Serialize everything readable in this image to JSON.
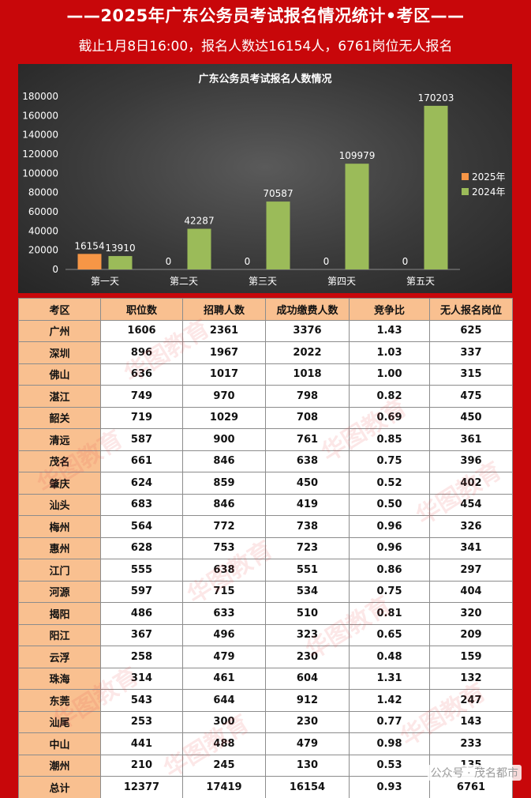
{
  "header": {
    "title": "——2025年广东公务员考试报名情况统计•考区——",
    "subtitle": "截止1月8日16:00，报名人数达16154人，6761岗位无人报名"
  },
  "chart_data": {
    "type": "bar",
    "title": "广东公务员考试报名人数情况",
    "categories": [
      "第一天",
      "第二天",
      "第三天",
      "第四天",
      "第五天"
    ],
    "series": [
      {
        "name": "2025年",
        "color": "#f79646",
        "values": [
          16154,
          0,
          0,
          0,
          0
        ]
      },
      {
        "name": "2024年",
        "color": "#9bbb59",
        "values": [
          13910,
          42287,
          70587,
          109979,
          170203
        ]
      }
    ],
    "ylim": [
      0,
      180000
    ],
    "yticks": [
      0,
      20000,
      40000,
      60000,
      80000,
      100000,
      120000,
      140000,
      160000,
      180000
    ],
    "legend": "right",
    "grid": false
  },
  "table": {
    "headers": [
      "考区",
      "职位数",
      "招聘人数",
      "成功缴费人数",
      "竞争比",
      "无人报名岗位"
    ],
    "rows": [
      [
        "广州",
        "1606",
        "2361",
        "3376",
        "1.43",
        "625"
      ],
      [
        "深圳",
        "896",
        "1967",
        "2022",
        "1.03",
        "337"
      ],
      [
        "佛山",
        "636",
        "1017",
        "1018",
        "1.00",
        "315"
      ],
      [
        "湛江",
        "749",
        "970",
        "798",
        "0.82",
        "475"
      ],
      [
        "韶关",
        "719",
        "1029",
        "708",
        "0.69",
        "450"
      ],
      [
        "清远",
        "587",
        "900",
        "761",
        "0.85",
        "361"
      ],
      [
        "茂名",
        "661",
        "846",
        "638",
        "0.75",
        "396"
      ],
      [
        "肇庆",
        "624",
        "859",
        "450",
        "0.52",
        "402"
      ],
      [
        "汕头",
        "683",
        "846",
        "419",
        "0.50",
        "454"
      ],
      [
        "梅州",
        "564",
        "772",
        "738",
        "0.96",
        "326"
      ],
      [
        "惠州",
        "628",
        "753",
        "723",
        "0.96",
        "341"
      ],
      [
        "江门",
        "555",
        "638",
        "551",
        "0.86",
        "297"
      ],
      [
        "河源",
        "597",
        "715",
        "534",
        "0.75",
        "404"
      ],
      [
        "揭阳",
        "486",
        "633",
        "510",
        "0.81",
        "320"
      ],
      [
        "阳江",
        "367",
        "496",
        "323",
        "0.65",
        "209"
      ],
      [
        "云浮",
        "258",
        "479",
        "230",
        "0.48",
        "159"
      ],
      [
        "珠海",
        "314",
        "461",
        "604",
        "1.31",
        "132"
      ],
      [
        "东莞",
        "543",
        "644",
        "912",
        "1.42",
        "247"
      ],
      [
        "汕尾",
        "253",
        "300",
        "230",
        "0.77",
        "143"
      ],
      [
        "中山",
        "441",
        "488",
        "479",
        "0.98",
        "233"
      ],
      [
        "潮州",
        "210",
        "245",
        "130",
        "0.53",
        "135"
      ],
      [
        "总计",
        "12377",
        "17419",
        "16154",
        "0.93",
        "6761"
      ]
    ]
  },
  "source": "公众号 · 茂名都市"
}
